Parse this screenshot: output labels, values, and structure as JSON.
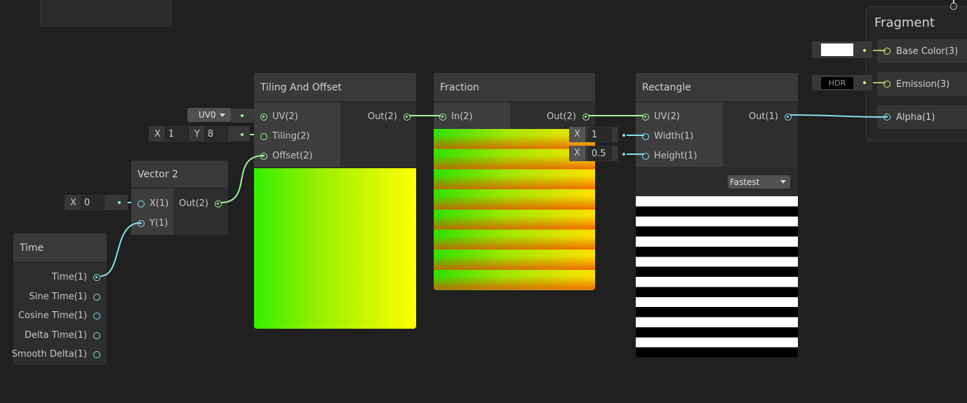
{
  "top_node": {},
  "tiling_offset": {
    "title": "Tiling And Offset",
    "inputs": [
      "UV(2)",
      "Tiling(2)",
      "Offset(2)"
    ],
    "output": "Out(2)",
    "uv_dropdown": "UV0",
    "tiling_x_axis": "X",
    "tiling_x": "1",
    "tiling_y_axis": "Y",
    "tiling_y": "8"
  },
  "vector2": {
    "title": "Vector 2",
    "inputs": [
      "X(1)",
      "Y(1)"
    ],
    "output": "Out(2)",
    "x_axis": "X",
    "x_value": "0"
  },
  "time": {
    "title": "Time",
    "outputs": [
      "Time(1)",
      "Sine Time(1)",
      "Cosine Time(1)",
      "Delta Time(1)",
      "Smooth Delta(1)"
    ]
  },
  "fraction": {
    "title": "Fraction",
    "input": "In(2)",
    "output": "Out(2)"
  },
  "rectangle": {
    "title": "Rectangle",
    "inputs": [
      "UV(2)",
      "Width(1)",
      "Height(1)"
    ],
    "output": "Out(1)",
    "width_axis": "X",
    "width_value": "1",
    "height_axis": "X",
    "height_value": "0.5",
    "quality_dropdown": "Fastest"
  },
  "fragment": {
    "title": "Fragment",
    "slots": [
      "Base Color(3)",
      "Emission(3)",
      "Alpha(1)"
    ],
    "base_color_swatch": "#ffffff",
    "emission_label": "HDR"
  },
  "colors": {
    "canvas": "#202020",
    "vector_port": "#9ff59a",
    "float_port": "#84e2ec",
    "color_port": "#e8ea7a"
  }
}
